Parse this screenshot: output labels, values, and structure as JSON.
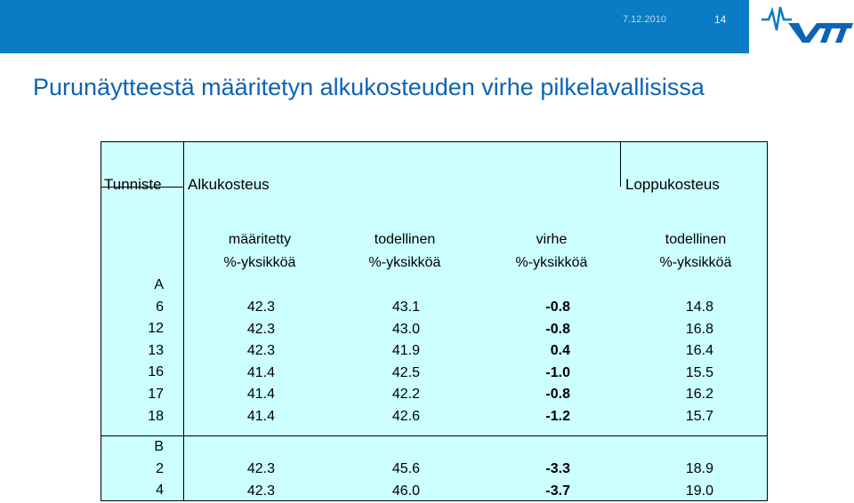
{
  "header": {
    "date": "7.12.2010",
    "page_number": "14"
  },
  "title": "Purunäytteestä määritetyn alkukosteuden virhe pilkelavallisissa",
  "table": {
    "headers": {
      "id": "Tunniste",
      "initial": "Alkukosteus",
      "final": "Loppukosteus"
    },
    "subheaders": [
      {
        "line1": "määritetty",
        "line2": "%-yksikköä"
      },
      {
        "line1": "todellinen",
        "line2": "%-yksikköä"
      },
      {
        "line1": "virhe",
        "line2": "%-yksikköä"
      },
      {
        "line1": "todellinen",
        "line2": "%-yksikköä"
      }
    ],
    "group_a": {
      "label": "A",
      "ids": [
        "6",
        "12",
        "13",
        "16",
        "17",
        "18"
      ],
      "measured": [
        "42.3",
        "42.3",
        "42.3",
        "41.4",
        "41.4",
        "41.4"
      ],
      "actual": [
        "43.1",
        "43.0",
        "41.9",
        "42.5",
        "42.2",
        "42.6"
      ],
      "error": [
        "-0.8",
        "-0.8",
        "0.4",
        "-1.0",
        "-0.8",
        "-1.2"
      ],
      "final": [
        "14.8",
        "16.8",
        "16.4",
        "15.5",
        "16.2",
        "15.7"
      ]
    },
    "group_b": {
      "label": "B",
      "ids": [
        "2",
        "4"
      ],
      "measured": [
        "42.3",
        "42.3"
      ],
      "actual": [
        "45.6",
        "46.0"
      ],
      "error": [
        "-3.3",
        "-3.7"
      ],
      "final": [
        "18.9",
        "19.0"
      ]
    }
  }
}
